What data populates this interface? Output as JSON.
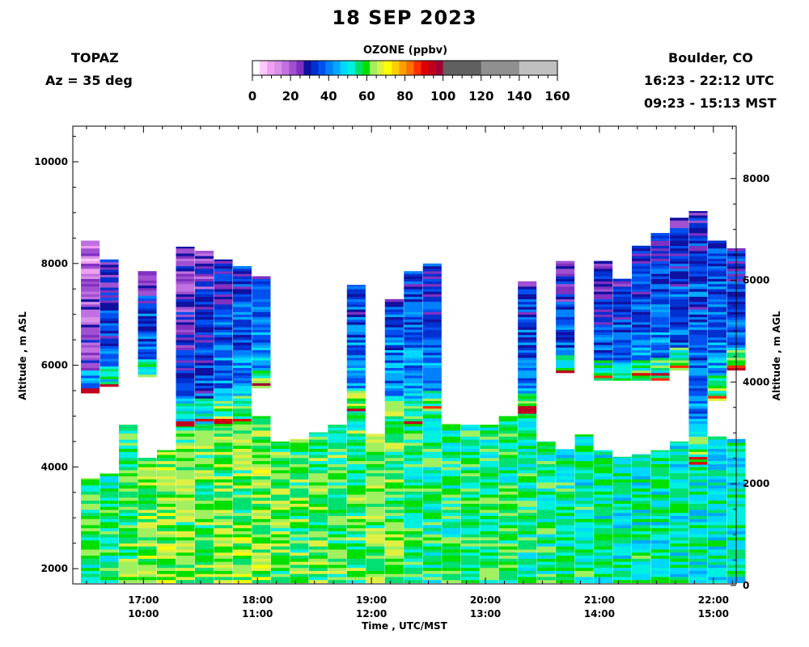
{
  "header": {
    "title": "18 SEP 2023",
    "instrument": "TOPAZ",
    "azimuth": "Az =  35 deg",
    "location": "Boulder, CO",
    "utc_range": "16:23 - 22:12 UTC",
    "mst_range": "09:23 - 15:13 MST"
  },
  "colorbar": {
    "title": "OZONE (ppbv)",
    "ticks": [
      "0",
      "20",
      "40",
      "60",
      "80",
      "100",
      "120",
      "140",
      "160"
    ],
    "colors": [
      "#ffffff",
      "#ffc8ff",
      "#f0a0f0",
      "#d890e8",
      "#c070e0",
      "#a050d0",
      "#8030c0",
      "#1010a0",
      "#0030d0",
      "#0050f0",
      "#0080ff",
      "#00a8ff",
      "#00d8ff",
      "#00f0e0",
      "#00e070",
      "#00e000",
      "#a0f060",
      "#e0f040",
      "#ffff00",
      "#ffd000",
      "#ffa000",
      "#ff7000",
      "#ff3000",
      "#e00000",
      "#c00020",
      "#a00030",
      "#606060",
      "#909090",
      "#c0c0c0"
    ]
  },
  "chart_data": {
    "type": "heatmap",
    "title": "18 SEP 2023",
    "xlabel": "Time , UTC/MST",
    "ylabel_left": "Altitude , m ASL",
    "ylabel_right": "Altitude , m AGL",
    "x_ticks_utc": [
      "17:00",
      "18:00",
      "19:00",
      "20:00",
      "21:00",
      "22:00"
    ],
    "x_ticks_mst": [
      "10:00",
      "11:00",
      "12:00",
      "13:00",
      "14:00",
      "15:00"
    ],
    "y_left_ticks": [
      "2000",
      "4000",
      "6000",
      "8000",
      "10000"
    ],
    "y_right_ticks": [
      "0",
      "2000",
      "4000",
      "6000",
      "8000"
    ],
    "xlim_utc_hours": [
      16.38,
      22.2
    ],
    "ylim_asl_m": [
      1700,
      10700
    ],
    "agl_offset_m": 1670,
    "colorbar_range_ppbv": [
      0,
      160
    ],
    "profiles": [
      {
        "time": "16:32",
        "upper_top": 8450,
        "upper_bottom": 5450,
        "lower_top": 3780,
        "upper_o3": 28,
        "lower_o3": 58
      },
      {
        "time": "16:42",
        "upper_top": 8080,
        "upper_bottom": 5580,
        "lower_top": 3870,
        "upper_o3": 40,
        "lower_o3": 57
      },
      {
        "time": "16:52",
        "upper_top": 0,
        "upper_bottom": 0,
        "lower_top": 4830,
        "upper_o3": 0,
        "lower_o3": 60
      },
      {
        "time": "17:02",
        "upper_top": 7850,
        "upper_bottom": 5770,
        "lower_top": 4180,
        "upper_o3": 42,
        "lower_o3": 63
      },
      {
        "time": "17:12",
        "upper_top": 0,
        "upper_bottom": 0,
        "lower_top": 4330,
        "upper_o3": 0,
        "lower_o3": 64
      },
      {
        "time": "17:22",
        "upper_top": 8330,
        "upper_bottom": 4800,
        "lower_top": 4800,
        "upper_o3": 36,
        "lower_o3": 62
      },
      {
        "time": "17:32",
        "upper_top": 8250,
        "upper_bottom": 4800,
        "lower_top": 4800,
        "upper_o3": 38,
        "lower_o3": 61
      },
      {
        "time": "17:42",
        "upper_top": 8080,
        "upper_bottom": 4800,
        "lower_top": 4800,
        "upper_o3": 44,
        "lower_o3": 62
      },
      {
        "time": "17:52",
        "upper_top": 7950,
        "upper_bottom": 4900,
        "lower_top": 4900,
        "upper_o3": 45,
        "lower_o3": 62
      },
      {
        "time": "18:02",
        "upper_top": 7750,
        "upper_bottom": 5550,
        "lower_top": 5000,
        "upper_o3": 46,
        "lower_o3": 63
      },
      {
        "time": "18:12",
        "upper_top": 0,
        "upper_bottom": 0,
        "lower_top": 4500,
        "upper_o3": 0,
        "lower_o3": 61
      },
      {
        "time": "18:22",
        "upper_top": 0,
        "upper_bottom": 0,
        "lower_top": 4550,
        "upper_o3": 0,
        "lower_o3": 61
      },
      {
        "time": "18:32",
        "upper_top": 0,
        "upper_bottom": 0,
        "lower_top": 4680,
        "upper_o3": 0,
        "lower_o3": 61
      },
      {
        "time": "18:42",
        "upper_top": 0,
        "upper_bottom": 0,
        "lower_top": 4830,
        "upper_o3": 0,
        "lower_o3": 60
      },
      {
        "time": "18:52",
        "upper_top": 7580,
        "upper_bottom": 5100,
        "lower_top": 5100,
        "upper_o3": 46,
        "lower_o3": 60
      },
      {
        "time": "19:02",
        "upper_top": 0,
        "upper_bottom": 0,
        "lower_top": 4650,
        "upper_o3": 0,
        "lower_o3": 62
      },
      {
        "time": "19:12",
        "upper_top": 7300,
        "upper_bottom": 4900,
        "lower_top": 4900,
        "upper_o3": 47,
        "lower_o3": 62
      },
      {
        "time": "19:22",
        "upper_top": 7850,
        "upper_bottom": 4800,
        "lower_top": 4800,
        "upper_o3": 46,
        "lower_o3": 58
      },
      {
        "time": "19:32",
        "upper_top": 8000,
        "upper_bottom": 5050,
        "lower_top": 5050,
        "upper_o3": 45,
        "lower_o3": 57
      },
      {
        "time": "19:42",
        "upper_top": 0,
        "upper_bottom": 0,
        "lower_top": 4850,
        "upper_o3": 0,
        "lower_o3": 58
      },
      {
        "time": "19:52",
        "upper_top": 0,
        "upper_bottom": 0,
        "lower_top": 4830,
        "upper_o3": 0,
        "lower_o3": 58
      },
      {
        "time": "20:02",
        "upper_top": 0,
        "upper_bottom": 0,
        "lower_top": 4830,
        "upper_o3": 0,
        "lower_o3": 58
      },
      {
        "time": "20:12",
        "upper_top": 0,
        "upper_bottom": 0,
        "lower_top": 5000,
        "upper_o3": 0,
        "lower_o3": 58
      },
      {
        "time": "20:22",
        "upper_top": 7650,
        "upper_bottom": 5050,
        "lower_top": 5050,
        "upper_o3": 44,
        "lower_o3": 56
      },
      {
        "time": "20:32",
        "upper_top": 0,
        "upper_bottom": 0,
        "lower_top": 4500,
        "upper_o3": 0,
        "lower_o3": 57
      },
      {
        "time": "20:42",
        "upper_top": 8050,
        "upper_bottom": 5850,
        "lower_top": 4350,
        "upper_o3": 40,
        "lower_o3": 55
      },
      {
        "time": "20:52",
        "upper_top": 0,
        "upper_bottom": 0,
        "lower_top": 4640,
        "upper_o3": 0,
        "lower_o3": 55
      },
      {
        "time": "21:02",
        "upper_top": 8050,
        "upper_bottom": 5700,
        "lower_top": 4330,
        "upper_o3": 40,
        "lower_o3": 54
      },
      {
        "time": "21:12",
        "upper_top": 7700,
        "upper_bottom": 5700,
        "lower_top": 4200,
        "upper_o3": 42,
        "lower_o3": 54
      },
      {
        "time": "21:22",
        "upper_top": 8350,
        "upper_bottom": 5700,
        "lower_top": 4250,
        "upper_o3": 44,
        "lower_o3": 54
      },
      {
        "time": "21:32",
        "upper_top": 8600,
        "upper_bottom": 5700,
        "lower_top": 4330,
        "upper_o3": 44,
        "lower_o3": 54
      },
      {
        "time": "21:42",
        "upper_top": 8900,
        "upper_bottom": 5900,
        "lower_top": 4500,
        "upper_o3": 42,
        "lower_o3": 53
      },
      {
        "time": "21:52",
        "upper_top": 9030,
        "upper_bottom": 4000,
        "lower_top": 4000,
        "upper_o3": 44,
        "lower_o3": 52
      },
      {
        "time": "22:02",
        "upper_top": 8450,
        "upper_bottom": 5300,
        "lower_top": 4600,
        "upper_o3": 46,
        "lower_o3": 52
      },
      {
        "time": "22:12",
        "upper_top": 8300,
        "upper_bottom": 5900,
        "lower_top": 4550,
        "upper_o3": 44,
        "lower_o3": 52
      }
    ]
  }
}
